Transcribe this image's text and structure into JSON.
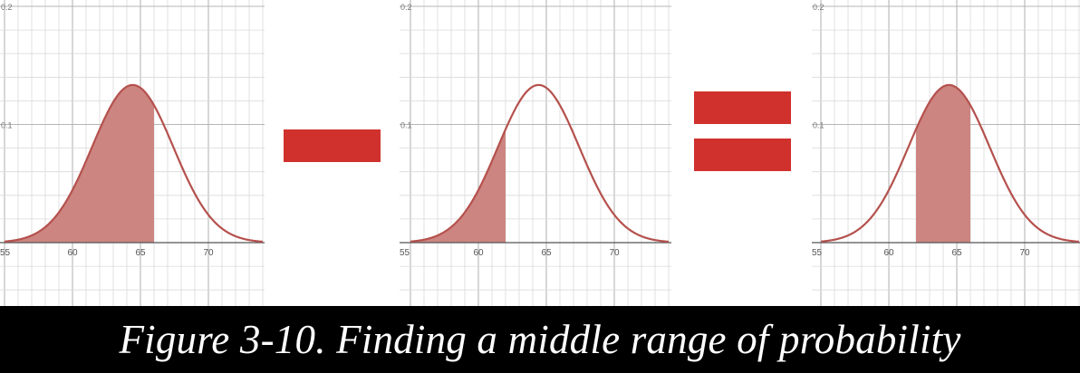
{
  "figure": {
    "caption": "Figure 3-10. Finding a middle range of probability",
    "curve_color": "#b5514d",
    "fill_color": "#cc8581",
    "operator_color": "#d0312c"
  },
  "chart_data": [
    {
      "type": "area",
      "distribution": "normal",
      "mean": 64.43,
      "sd": 2.99,
      "xlim": [
        55,
        74
      ],
      "ylim": [
        0,
        0.2
      ],
      "x_ticks": [
        "55",
        "60",
        "65",
        "70"
      ],
      "y_ticks": [
        "0.1",
        "0.2"
      ],
      "shaded_range": [
        55,
        66
      ],
      "grid": true
    },
    {
      "type": "area",
      "distribution": "normal",
      "mean": 64.43,
      "sd": 2.99,
      "xlim": [
        55,
        74
      ],
      "ylim": [
        0,
        0.2
      ],
      "x_ticks": [
        "55",
        "60",
        "65",
        "70"
      ],
      "y_ticks": [
        "0.1",
        "0.2"
      ],
      "shaded_range": [
        55,
        62
      ],
      "grid": true
    },
    {
      "type": "area",
      "distribution": "normal",
      "mean": 64.43,
      "sd": 2.99,
      "xlim": [
        55,
        74
      ],
      "ylim": [
        0,
        0.2
      ],
      "x_ticks": [
        "55",
        "60",
        "65",
        "70"
      ],
      "y_ticks": [
        "0.1",
        "0.2"
      ],
      "shaded_range": [
        62,
        66
      ],
      "grid": true
    }
  ],
  "operators": [
    {
      "name": "minus"
    },
    {
      "name": "equals"
    }
  ]
}
